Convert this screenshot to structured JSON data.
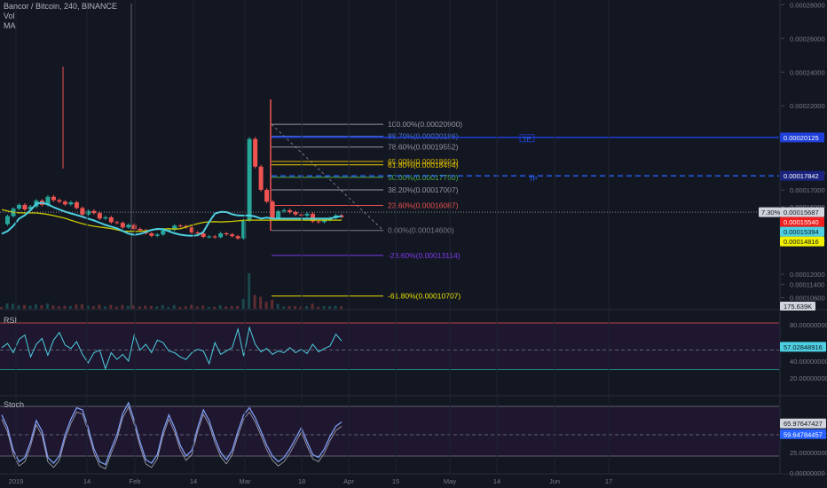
{
  "header": {
    "symbol": "Bancor / Bitcoin, 240, BINANCE",
    "vol_label": "Vol",
    "ma_label": "MA"
  },
  "panes": {
    "rsi_label": "RSI",
    "stoch_label": "Stoch"
  },
  "colors": {
    "background": "#131722",
    "candle_up": "#26a69a",
    "candle_down": "#ef5350",
    "ma_fast": "#4dd0e1",
    "ma_slow": "#c8c800",
    "rsi_line": "#4dd0e1",
    "stoch_line": "#7f9cf5",
    "blue_line": "#1e3fd8",
    "dashed_blue": "#2962ff"
  },
  "chart_data": [
    {
      "type": "line",
      "pane": "price",
      "y_ticks": [
        "0.00028000",
        "0.00026000",
        "0.00024000",
        "0.00022000",
        "0.00018000",
        "0.00017000",
        "0.00016000",
        "0.00014000",
        "0.00012000",
        "0.00011400",
        "0.00010600"
      ],
      "x_ticks": [
        "2019",
        "14",
        "Feb",
        "14",
        "Mar",
        "18",
        "Apr",
        "15",
        "May",
        "14",
        "Jun",
        "17"
      ],
      "ylim": [
        9.95e-05,
        0.0002828
      ],
      "close": [
        0.0001497,
        0.0001545,
        0.0001589,
        0.0001612,
        0.0001585,
        0.0001602,
        0.0001637,
        0.0001612,
        0.000166,
        0.000164,
        0.0001631,
        0.0001615,
        0.0001627,
        0.0001593,
        0.0001554,
        0.0001576,
        0.0001563,
        0.0001531,
        0.0001538,
        0.0001509,
        0.0001505,
        0.0001478,
        0.0001493,
        0.0001469,
        0.0001461,
        0.0001443,
        0.0001428,
        0.0001436,
        0.0001462,
        0.0001463,
        0.0001489,
        0.0001486,
        0.0001478,
        0.0001448,
        0.0001442,
        0.0001422,
        0.0001424,
        0.000142,
        0.0001443,
        0.0001437,
        0.0001426,
        0.0001413,
        0.000152,
        0.0002003,
        0.0001839,
        0.0001701,
        0.0001631,
        0.0001534,
        0.0001574,
        0.000158,
        0.0001569,
        0.0001555,
        0.0001548,
        0.0001559,
        0.0001514,
        0.000151,
        0.0001523,
        0.0001533,
        0.0001549,
        0.000154
      ],
      "ma_fast": [
        0.000144,
        0.0001456,
        0.0001487,
        0.000153,
        0.000155,
        0.000158,
        0.0001618,
        0.0001625,
        0.0001615,
        0.0001598,
        0.0001584,
        0.0001571,
        0.0001561,
        0.0001552,
        0.0001541,
        0.000153,
        0.0001519,
        0.0001506,
        0.0001493,
        0.0001483,
        0.0001473,
        0.0001457,
        0.0001441,
        0.0001434,
        0.0001439,
        0.000145,
        0.0001463,
        0.0001469,
        0.0001468,
        0.0001455,
        0.0001443,
        0.0001435,
        0.000143,
        0.0001428,
        0.0001431,
        0.0001451,
        0.000151,
        0.000156,
        0.000157,
        0.0001569,
        0.0001556,
        0.0001549,
        0.0001548,
        0.0001549,
        0.0001543,
        0.000153,
        0.0001536,
        0.000153,
        0.000153,
        0.000153,
        0.000153,
        0.000153,
        0.000153,
        0.000153,
        0.000153,
        0.000153,
        0.000153,
        0.000153,
        0.000154,
        0.0001545
      ],
      "ma_slow": [
        0.0001584,
        0.0001576,
        0.0001568,
        0.0001565,
        0.0001564,
        0.0001564,
        0.0001564,
        0.000156,
        0.0001555,
        0.0001548,
        0.000154,
        0.0001532,
        0.000152,
        0.000151,
        0.00015,
        0.0001491,
        0.0001485,
        0.000148,
        0.0001476,
        0.0001471,
        0.0001464,
        0.0001456,
        0.0001455,
        0.0001454,
        0.0001455,
        0.0001458,
        0.0001463,
        0.0001466,
        0.0001469,
        0.000147,
        0.0001469,
        0.000147,
        0.000148,
        0.0001491,
        0.00015,
        0.0001508,
        0.0001511,
        0.0001512,
        0.000151,
        0.0001512,
        0.0001514,
        0.0001517,
        0.000152,
        0.0001521,
        0.0001521,
        0.0001521,
        0.0001521,
        0.0001521,
        0.0001521,
        0.0001521,
        0.0001521,
        0.0001521,
        0.0001521,
        0.0001521,
        0.0001521,
        0.0001521,
        0.0001521,
        0.0001521,
        0.0001521,
        0.0001521
      ],
      "fib_levels": [
        {
          "label": "100.00%(0.00020900)",
          "value": 0.000209,
          "color": "#9598a1"
        },
        {
          "label": "88.70%(0.00020186)",
          "value": 0.00020186,
          "color": "#4a74d8"
        },
        {
          "label": "78.60%(0.00019552)",
          "value": 0.00019552,
          "color": "#9598a1"
        },
        {
          "label": "65.00%(0.00018693)",
          "value": 0.00018693,
          "color": "#d4b400"
        },
        {
          "label": "61.80%(0.00018494)",
          "value": 0.00018494,
          "color": "#e8c800"
        },
        {
          "label": "50.00%(0.00017750)",
          "value": 0.0001775,
          "color": "#4caf50"
        },
        {
          "label": "38.20%(0.00017007)",
          "value": 0.00017007,
          "color": "#9598a1"
        },
        {
          "label": "23.60%(0.00016087)",
          "value": 0.00016087,
          "color": "#ef5350"
        },
        {
          "label": "0.00%(0.00014600)",
          "value": 0.000146,
          "color": "#787b86"
        },
        {
          "label": "-23.60%(0.00013114)",
          "value": 0.00013114,
          "color": "#7c3aed"
        },
        {
          "label": "-61.80%(0.00010707)",
          "value": 0.00010707,
          "color": "#e8e000"
        }
      ],
      "price_tags": [
        {
          "text": "0.00020125",
          "bg": "#1e3fd8",
          "fg": "#ffffff"
        },
        {
          "text": "0.00017842",
          "bg": "#1a237e",
          "fg": "#ffffff"
        },
        {
          "text": "0.00015687",
          "bg": "#d1d4dc",
          "fg": "#131722"
        },
        {
          "text": "0.00015540",
          "bg": "#ef2020",
          "fg": "#ffffff"
        },
        {
          "text": "0.00015394",
          "bg": "#4dd0e1",
          "fg": "#131722"
        },
        {
          "text": "0.00014816",
          "bg": "#f0f000",
          "fg": "#131722"
        }
      ],
      "percent_tag": "7.30%",
      "volume_tag": "175.639K",
      "annotations": {
        "box_top": "TP",
        "box_bottom": "TP"
      }
    },
    {
      "type": "line",
      "pane": "rsi",
      "y_ticks": [
        "80.00000000",
        "40.00000000",
        "20.00000000"
      ],
      "current_value": "57.02848916",
      "ylim": [
        0,
        100
      ],
      "values": [
        56,
        61,
        50,
        66,
        71,
        45,
        60,
        67,
        47,
        65,
        74,
        59,
        55,
        63,
        48,
        38,
        50,
        53,
        31,
        50,
        42,
        48,
        40,
        71,
        53,
        60,
        50,
        65,
        62,
        52,
        50,
        45,
        42,
        50,
        54,
        52,
        37,
        62,
        48,
        52,
        56,
        78,
        46,
        80,
        60,
        51,
        55,
        48,
        52,
        50,
        56,
        50,
        54,
        49,
        60,
        51,
        55,
        58,
        72,
        64
      ]
    },
    {
      "type": "line",
      "pane": "stoch",
      "y_ticks": [
        "50.00000000",
        "25.00000000",
        "0.00000000"
      ],
      "current_values": [
        "65.97647427",
        "59.64784457"
      ],
      "ylim": [
        0,
        100
      ],
      "values": [
        78,
        60,
        28,
        12,
        18,
        40,
        70,
        55,
        18,
        10,
        20,
        50,
        72,
        88,
        85,
        60,
        30,
        12,
        8,
        30,
        50,
        80,
        95,
        70,
        40,
        15,
        10,
        22,
        55,
        78,
        60,
        35,
        20,
        28,
        60,
        85,
        70,
        45,
        25,
        15,
        28,
        55,
        78,
        88,
        74,
        55,
        35,
        20,
        12,
        18,
        30,
        45,
        60,
        40,
        22,
        18,
        30,
        48,
        62,
        68
      ]
    }
  ]
}
